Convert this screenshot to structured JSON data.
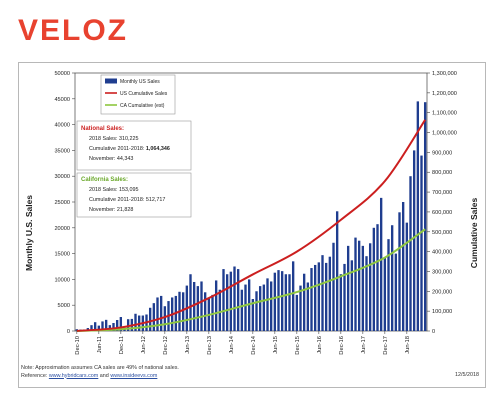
{
  "brand": {
    "logo_text": "VELOZ",
    "accent": "#e8422f"
  },
  "footnote": {
    "note": "Note: Approximation assumes CA sales are 49% of national sales.",
    "reference_prefix": "Reference: ",
    "link1": "www.hybridcars.com",
    "and": " and ",
    "link2": "www.insideevs.com",
    "date": "12/5/2018"
  },
  "national_box": {
    "title": "National Sales:",
    "line1": "2018 Sales: 310,225",
    "line2_prefix": "Cumulative 2011-2018: ",
    "line2_value": "1,064,346",
    "line3": "November: 44,343"
  },
  "california_box": {
    "title": "California Sales:",
    "line1": "2018 Sales: 153,095",
    "line2": "Cumulative 2011-2018: 512,717",
    "line3": "November: 21,828"
  },
  "chart_data": {
    "type": "bar",
    "x_start": "Dec-10",
    "x_end": "Nov-18",
    "xtick_labels": [
      "Dec-10",
      "Jun-11",
      "Dec-11",
      "Jun-12",
      "Dec-12",
      "Jun-13",
      "Dec-13",
      "Jun-14",
      "Dec-14",
      "Jun-15",
      "Dec-15",
      "Jun-16",
      "Dec-16",
      "Jun-17",
      "Dec-17",
      "Jun-18"
    ],
    "ylabel_left": "Monthly U.S. Sales",
    "ylabel_right": "Cumulative Sales",
    "ylim_left": [
      0,
      50000
    ],
    "ylim_right": [
      0,
      1300000
    ],
    "yticks_left": [
      "0",
      "5000",
      "10000",
      "15000",
      "20000",
      "25000",
      "30000",
      "35000",
      "40000",
      "45000",
      "50000"
    ],
    "yticks_right": [
      "0",
      "100,000",
      "200,000",
      "300,000",
      "400,000",
      "500,000",
      "600,000",
      "700,000",
      "800,000",
      "900,000",
      "1,000,000",
      "1,100,000",
      "1,200,000",
      "1,300,000"
    ],
    "legend_position": "top-right",
    "colors": {
      "bars": "#1f3d8f",
      "us_cumulative": "#cc1f1f",
      "ca_cumulative": "#8ec63f"
    },
    "series": [
      {
        "name": "Monthly US Sales",
        "type": "bar",
        "axis": "left",
        "values": [
          345,
          281,
          299,
          573,
          1129,
          1708,
          1042,
          1859,
          2160,
          1139,
          1551,
          2129,
          2710,
          603,
          2289,
          2345,
          3340,
          3000,
          3000,
          3200,
          4500,
          5400,
          6500,
          6800,
          4800,
          5800,
          6500,
          6800,
          7600,
          7500,
          8800,
          11000,
          9500,
          8700,
          9600,
          7500,
          6400,
          7000,
          9800,
          8000,
          12000,
          11000,
          11500,
          12500,
          12000,
          8000,
          9000,
          10000,
          6200,
          7700,
          8700,
          9000,
          10200,
          9600,
          11300,
          11800,
          11600,
          11000,
          11000,
          13500,
          7000,
          8800,
          11100,
          9400,
          12200,
          12800,
          13300,
          14700,
          13200,
          14400,
          17100,
          23200,
          11000,
          13000,
          16500,
          13700,
          18100,
          17500,
          16500,
          14500,
          17000,
          20000,
          20700,
          25800,
          14300,
          17800,
          20500,
          15000,
          23000,
          25000,
          21000,
          30000,
          35000,
          44500,
          34000,
          44343
        ]
      },
      {
        "name": "US Cumulative Sales",
        "type": "line",
        "axis": "right",
        "x": [
          "Dec-10",
          "Dec-11",
          "Dec-12",
          "Dec-13",
          "Dec-14",
          "Dec-15",
          "Dec-16",
          "Dec-17",
          "Nov-18"
        ],
        "values": [
          345,
          18000,
          70000,
          166000,
          285000,
          400000,
          560000,
          755000,
          1064346
        ]
      },
      {
        "name": "CA Cumulative (est)",
        "type": "line",
        "axis": "right",
        "x": [
          "Dec-10",
          "Dec-11",
          "Dec-12",
          "Dec-13",
          "Dec-14",
          "Dec-15",
          "Dec-16",
          "Dec-17",
          "Nov-18"
        ],
        "values": [
          170,
          8800,
          34000,
          81000,
          140000,
          196000,
          275000,
          370000,
          512717
        ]
      }
    ]
  }
}
